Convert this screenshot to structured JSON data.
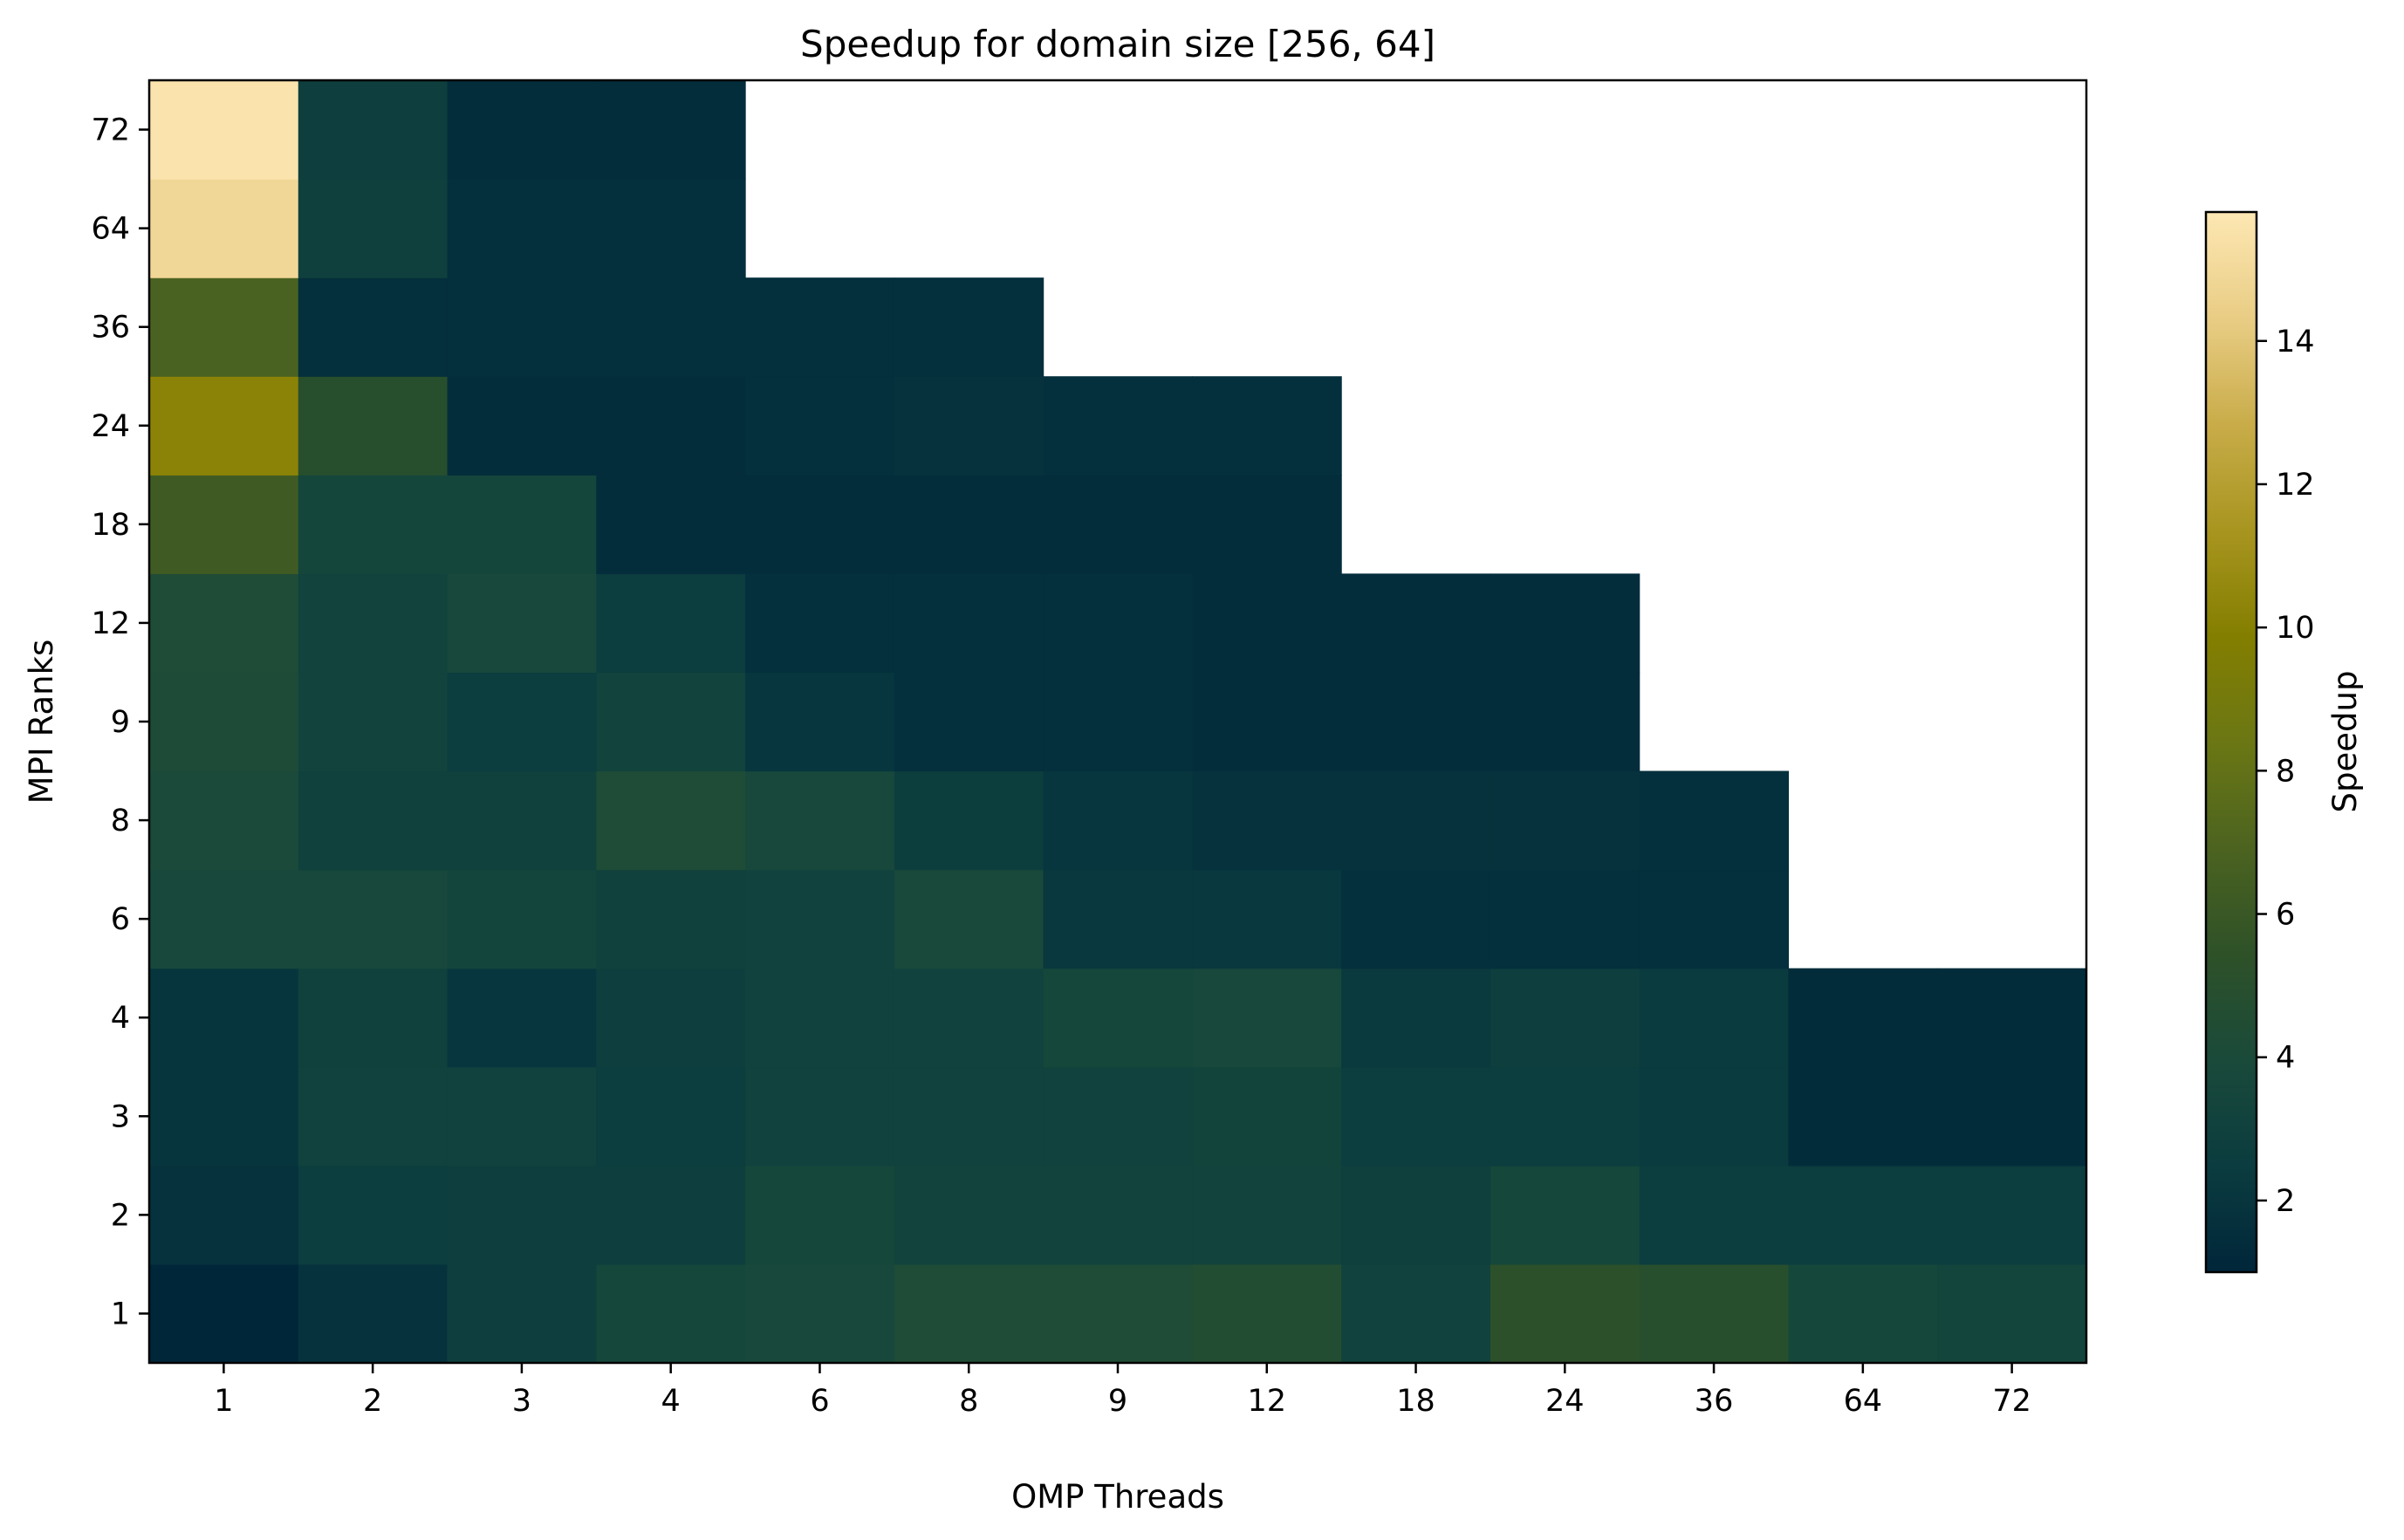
{
  "chart_data": {
    "type": "heatmap",
    "title": "Speedup for domain size [256, 64]",
    "xlabel": "OMP Threads",
    "ylabel": "MPI Ranks",
    "x_categories": [
      "1",
      "2",
      "3",
      "4",
      "6",
      "8",
      "9",
      "12",
      "18",
      "24",
      "36",
      "64",
      "72"
    ],
    "y_categories": [
      "1",
      "2",
      "3",
      "4",
      "6",
      "8",
      "9",
      "12",
      "18",
      "24",
      "36",
      "64",
      "72"
    ],
    "values": [
      [
        1.0,
        1.8,
        2.8,
        3.6,
        3.8,
        4.3,
        4.3,
        4.6,
        3.1,
        5.3,
        5.0,
        3.6,
        3.4
      ],
      [
        1.8,
        2.6,
        2.8,
        2.8,
        3.6,
        3.2,
        3.2,
        3.2,
        2.9,
        3.6,
        2.6,
        2.6,
        2.6
      ],
      [
        2.0,
        3.1,
        3.1,
        2.6,
        3.1,
        3.1,
        3.1,
        3.3,
        2.6,
        2.6,
        2.4,
        1.4,
        1.4
      ],
      [
        2.0,
        3.0,
        2.1,
        2.8,
        3.1,
        3.1,
        3.6,
        3.8,
        2.3,
        2.8,
        2.4,
        1.4,
        1.4
      ],
      [
        3.7,
        3.7,
        3.4,
        3.0,
        3.1,
        3.9,
        2.2,
        2.2,
        1.6,
        1.6,
        1.6,
        null,
        null
      ],
      [
        4.0,
        3.0,
        3.0,
        4.3,
        3.7,
        2.7,
        2.1,
        1.8,
        1.8,
        1.8,
        1.6,
        null,
        null
      ],
      [
        4.2,
        3.2,
        2.6,
        3.2,
        2.1,
        1.6,
        1.6,
        1.5,
        1.5,
        1.5,
        null,
        null,
        null
      ],
      [
        4.3,
        3.2,
        3.8,
        2.6,
        1.6,
        1.6,
        1.6,
        1.5,
        1.5,
        1.5,
        null,
        null,
        null
      ],
      [
        6.3,
        3.5,
        3.5,
        1.5,
        1.5,
        1.5,
        1.5,
        1.5,
        null,
        null,
        null,
        null,
        null
      ],
      [
        10.2,
        5.0,
        1.5,
        1.5,
        1.6,
        1.8,
        1.6,
        1.6,
        null,
        null,
        null,
        null,
        null
      ],
      [
        6.8,
        1.6,
        1.6,
        1.6,
        1.6,
        1.6,
        null,
        null,
        null,
        null,
        null,
        null,
        null
      ],
      [
        14.9,
        2.9,
        1.6,
        1.6,
        null,
        null,
        null,
        null,
        null,
        null,
        null,
        null,
        null
      ],
      [
        15.6,
        2.8,
        1.5,
        1.5,
        null,
        null,
        null,
        null,
        null,
        null,
        null,
        null,
        null
      ]
    ],
    "colorbar": {
      "label": "Speedup",
      "vmin": 1.0,
      "vmax": 15.8,
      "ticks": [
        "2",
        "4",
        "6",
        "8",
        "10",
        "12",
        "14"
      ]
    },
    "colormap": [
      "#00263a",
      "#0b3c3f",
      "#1a4a3a",
      "#2e5128",
      "#4c6320",
      "#6b7714",
      "#837e00",
      "#a89520",
      "#c9ac49",
      "#e9cd85",
      "#fde7b3"
    ]
  }
}
